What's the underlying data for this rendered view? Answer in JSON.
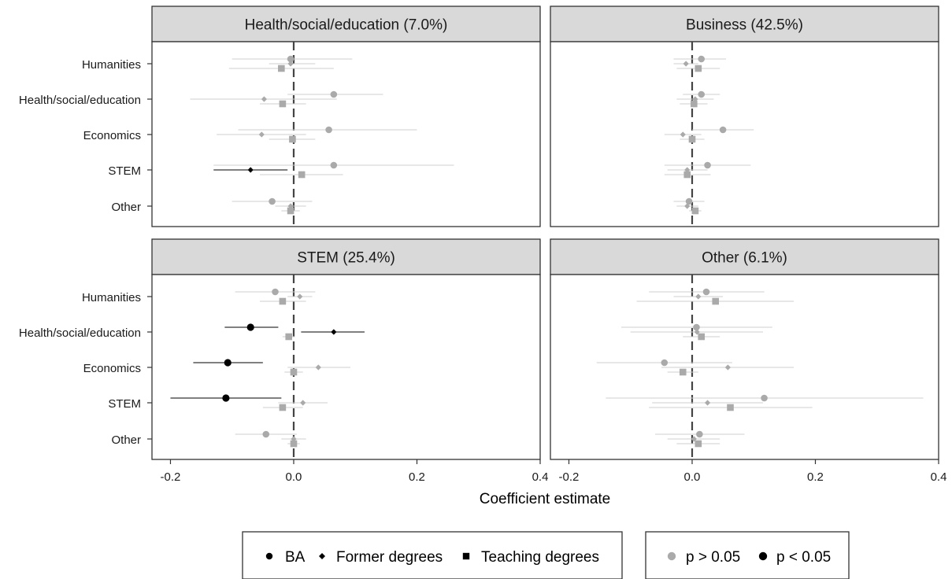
{
  "chart_data": {
    "type": "scatter",
    "subtype": "coefficient-plot-with-confidence-intervals",
    "facets": [
      {
        "title": "Health/social/education (7.0%)",
        "rows": [
          {
            "category": "Humanities",
            "estimates": [
              {
                "series": "BA",
                "value": -0.005,
                "ci": [
                  -0.1,
                  0.095
                ],
                "significant": false
              },
              {
                "series": "Former degrees",
                "value": -0.005,
                "ci": [
                  -0.04,
                  0.035
                ],
                "significant": false
              },
              {
                "series": "Teaching degrees",
                "value": -0.02,
                "ci": [
                  -0.105,
                  0.065
                ],
                "significant": false
              }
            ]
          },
          {
            "category": "Health/social/education",
            "estimates": [
              {
                "series": "BA",
                "value": 0.065,
                "ci": [
                  -0.01,
                  0.145
                ],
                "significant": false
              },
              {
                "series": "Former degrees",
                "value": -0.048,
                "ci": [
                  -0.168,
                  0.07
                ],
                "significant": false
              },
              {
                "series": "Teaching degrees",
                "value": -0.018,
                "ci": [
                  -0.055,
                  0.02
                ],
                "significant": false
              }
            ]
          },
          {
            "category": "Economics",
            "estimates": [
              {
                "series": "BA",
                "value": 0.057,
                "ci": [
                  -0.09,
                  0.2
                ],
                "significant": false
              },
              {
                "series": "Former degrees",
                "value": -0.052,
                "ci": [
                  -0.125,
                  0.02
                ],
                "significant": false
              },
              {
                "series": "Teaching degrees",
                "value": -0.002,
                "ci": [
                  -0.04,
                  0.035
                ],
                "significant": false
              }
            ]
          },
          {
            "category": "STEM",
            "estimates": [
              {
                "series": "BA",
                "value": 0.065,
                "ci": [
                  -0.13,
                  0.26
                ],
                "significant": false
              },
              {
                "series": "Former degrees",
                "value": -0.07,
                "ci": [
                  -0.13,
                  -0.01
                ],
                "significant": true
              },
              {
                "series": "Teaching degrees",
                "value": 0.013,
                "ci": [
                  -0.055,
                  0.08
                ],
                "significant": false
              }
            ]
          },
          {
            "category": "Other",
            "estimates": [
              {
                "series": "BA",
                "value": -0.035,
                "ci": [
                  -0.1,
                  0.03
                ],
                "significant": false
              },
              {
                "series": "Former degrees",
                "value": -0.005,
                "ci": [
                  -0.03,
                  0.02
                ],
                "significant": false
              },
              {
                "series": "Teaching degrees",
                "value": -0.005,
                "ci": [
                  -0.02,
                  0.01
                ],
                "significant": false
              }
            ]
          }
        ]
      },
      {
        "title": "Business (42.5%)",
        "rows": [
          {
            "category": "Humanities",
            "estimates": [
              {
                "series": "BA",
                "value": 0.015,
                "ci": [
                  -0.03,
                  0.055
                ],
                "significant": false
              },
              {
                "series": "Former degrees",
                "value": -0.01,
                "ci": [
                  -0.03,
                  0.01
                ],
                "significant": false
              },
              {
                "series": "Teaching degrees",
                "value": 0.01,
                "ci": [
                  -0.025,
                  0.045
                ],
                "significant": false
              }
            ]
          },
          {
            "category": "Health/social/education",
            "estimates": [
              {
                "series": "BA",
                "value": 0.015,
                "ci": [
                  -0.015,
                  0.045
                ],
                "significant": false
              },
              {
                "series": "Former degrees",
                "value": 0.005,
                "ci": [
                  -0.025,
                  0.035
                ],
                "significant": false
              },
              {
                "series": "Teaching degrees",
                "value": 0.003,
                "ci": [
                  -0.02,
                  0.025
                ],
                "significant": false
              }
            ]
          },
          {
            "category": "Economics",
            "estimates": [
              {
                "series": "BA",
                "value": 0.05,
                "ci": [
                  0.0,
                  0.1
                ],
                "significant": false
              },
              {
                "series": "Former degrees",
                "value": -0.015,
                "ci": [
                  -0.045,
                  0.015
                ],
                "significant": false
              },
              {
                "series": "Teaching degrees",
                "value": 0.0,
                "ci": [
                  -0.02,
                  0.02
                ],
                "significant": false
              }
            ]
          },
          {
            "category": "STEM",
            "estimates": [
              {
                "series": "BA",
                "value": 0.025,
                "ci": [
                  -0.045,
                  0.095
                ],
                "significant": false
              },
              {
                "series": "Former degrees",
                "value": -0.008,
                "ci": [
                  -0.04,
                  0.025
                ],
                "significant": false
              },
              {
                "series": "Teaching degrees",
                "value": -0.008,
                "ci": [
                  -0.045,
                  0.03
                ],
                "significant": false
              }
            ]
          },
          {
            "category": "Other",
            "estimates": [
              {
                "series": "BA",
                "value": -0.005,
                "ci": [
                  -0.03,
                  0.02
                ],
                "significant": false
              },
              {
                "series": "Former degrees",
                "value": -0.008,
                "ci": [
                  -0.025,
                  0.01
                ],
                "significant": false
              },
              {
                "series": "Teaching degrees",
                "value": 0.005,
                "ci": [
                  -0.005,
                  0.015
                ],
                "significant": false
              }
            ]
          }
        ]
      },
      {
        "title": "STEM (25.4%)",
        "rows": [
          {
            "category": "Humanities",
            "estimates": [
              {
                "series": "BA",
                "value": -0.03,
                "ci": [
                  -0.095,
                  0.035
                ],
                "significant": false
              },
              {
                "series": "Former degrees",
                "value": 0.01,
                "ci": [
                  -0.01,
                  0.03
                ],
                "significant": false
              },
              {
                "series": "Teaching degrees",
                "value": -0.018,
                "ci": [
                  -0.055,
                  0.02
                ],
                "significant": false
              }
            ]
          },
          {
            "category": "Health/social/education",
            "estimates": [
              {
                "series": "BA",
                "value": -0.07,
                "ci": [
                  -0.112,
                  -0.025
                ],
                "significant": true
              },
              {
                "series": "Former degrees",
                "value": 0.065,
                "ci": [
                  0.012,
                  0.115
                ],
                "significant": true
              },
              {
                "series": "Teaching degrees",
                "value": -0.008,
                "ci": [
                  -0.018,
                  0.002
                ],
                "significant": false
              }
            ]
          },
          {
            "category": "Economics",
            "estimates": [
              {
                "series": "BA",
                "value": -0.107,
                "ci": [
                  -0.163,
                  -0.05
                ],
                "significant": true
              },
              {
                "series": "Former degrees",
                "value": 0.04,
                "ci": [
                  -0.01,
                  0.092
                ],
                "significant": false
              },
              {
                "series": "Teaching degrees",
                "value": 0.0,
                "ci": [
                  -0.015,
                  0.015
                ],
                "significant": false
              }
            ]
          },
          {
            "category": "STEM",
            "estimates": [
              {
                "series": "BA",
                "value": -0.11,
                "ci": [
                  -0.2,
                  -0.02
                ],
                "significant": true
              },
              {
                "series": "Former degrees",
                "value": 0.015,
                "ci": [
                  -0.025,
                  0.055
                ],
                "significant": false
              },
              {
                "series": "Teaching degrees",
                "value": -0.018,
                "ci": [
                  -0.05,
                  0.015
                ],
                "significant": false
              }
            ]
          },
          {
            "category": "Other",
            "estimates": [
              {
                "series": "BA",
                "value": -0.045,
                "ci": [
                  -0.095,
                  0.005
                ],
                "significant": false
              },
              {
                "series": "Former degrees",
                "value": 0.0,
                "ci": [
                  -0.02,
                  0.02
                ],
                "significant": false
              },
              {
                "series": "Teaching degrees",
                "value": 0.0,
                "ci": [
                  -0.01,
                  0.01
                ],
                "significant": false
              }
            ]
          }
        ]
      },
      {
        "title": "Other (6.1%)",
        "rows": [
          {
            "category": "Humanities",
            "estimates": [
              {
                "series": "BA",
                "value": 0.023,
                "ci": [
                  -0.07,
                  0.117
                ],
                "significant": false
              },
              {
                "series": "Former degrees",
                "value": 0.01,
                "ci": [
                  -0.03,
                  0.05
                ],
                "significant": false
              },
              {
                "series": "Teaching degrees",
                "value": 0.038,
                "ci": [
                  -0.09,
                  0.165
                ],
                "significant": false
              }
            ]
          },
          {
            "category": "Health/social/education",
            "estimates": [
              {
                "series": "BA",
                "value": 0.007,
                "ci": [
                  -0.115,
                  0.13
                ],
                "significant": false
              },
              {
                "series": "Former degrees",
                "value": 0.008,
                "ci": [
                  -0.1,
                  0.115
                ],
                "significant": false
              },
              {
                "series": "Teaching degrees",
                "value": 0.015,
                "ci": [
                  -0.015,
                  0.045
                ],
                "significant": false
              }
            ]
          },
          {
            "category": "Economics",
            "estimates": [
              {
                "series": "BA",
                "value": -0.045,
                "ci": [
                  -0.155,
                  0.065
                ],
                "significant": false
              },
              {
                "series": "Former degrees",
                "value": 0.058,
                "ci": [
                  -0.05,
                  0.165
                ],
                "significant": false
              },
              {
                "series": "Teaching degrees",
                "value": -0.015,
                "ci": [
                  -0.04,
                  0.01
                ],
                "significant": false
              }
            ]
          },
          {
            "category": "STEM",
            "estimates": [
              {
                "series": "BA",
                "value": 0.117,
                "ci": [
                  -0.14,
                  0.375
                ],
                "significant": false
              },
              {
                "series": "Former degrees",
                "value": 0.025,
                "ci": [
                  -0.065,
                  0.115
                ],
                "significant": false
              },
              {
                "series": "Teaching degrees",
                "value": 0.062,
                "ci": [
                  -0.07,
                  0.195
                ],
                "significant": false
              }
            ]
          },
          {
            "category": "Other",
            "estimates": [
              {
                "series": "BA",
                "value": 0.012,
                "ci": [
                  -0.06,
                  0.085
                ],
                "significant": false
              },
              {
                "series": "Former degrees",
                "value": 0.003,
                "ci": [
                  -0.04,
                  0.045
                ],
                "significant": false
              },
              {
                "series": "Teaching degrees",
                "value": 0.01,
                "ci": [
                  -0.025,
                  0.045
                ],
                "significant": false
              }
            ]
          }
        ]
      }
    ],
    "categories": [
      "Humanities",
      "Health/social/education",
      "Economics",
      "STEM",
      "Other"
    ],
    "xlim": [
      -0.23,
      0.4
    ],
    "xticks": [
      -0.2,
      0.0,
      0.2,
      0.4
    ],
    "xtick_labels": [
      "-0.2",
      "0.0",
      "0.2",
      "0.4"
    ],
    "xlabel": "Coefficient estimate",
    "ylabel": "",
    "reference_line": 0,
    "grid": false,
    "legend": {
      "placement": "bottom",
      "shape_legend": [
        {
          "label": "BA",
          "shape": "circle"
        },
        {
          "label": "Former degrees",
          "shape": "diamond"
        },
        {
          "label": "Teaching degrees",
          "shape": "square"
        }
      ],
      "color_legend": [
        {
          "label": "p > 0.05",
          "color": "#aaaaaa"
        },
        {
          "label": "p < 0.05",
          "color": "#000000"
        }
      ]
    },
    "colors": {
      "not_significant": "#aaaaaa",
      "significant": "#000000",
      "ci_not_significant": "#cfcfcf",
      "strip_background": "#d9d9d9",
      "reference_line": "#444444"
    }
  }
}
